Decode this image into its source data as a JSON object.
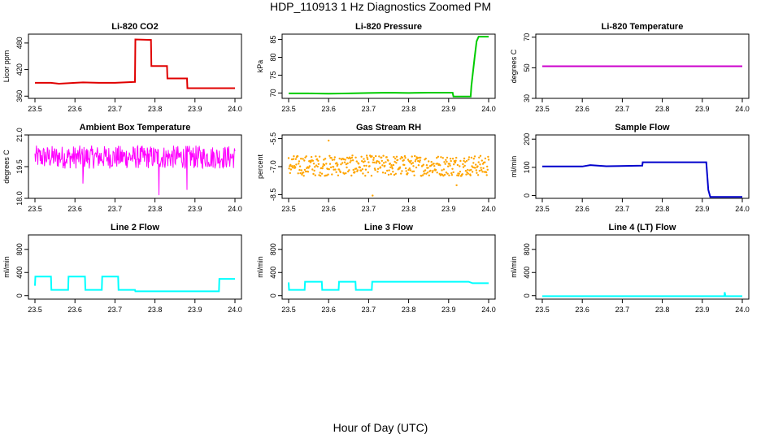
{
  "figure": {
    "title": "HDP_110913  1 Hz Diagnostics Zoomed PM",
    "xlabel": "Hour of Day (UTC)"
  },
  "chart_data": [
    {
      "type": "line",
      "title": "Li-820 CO2",
      "ylabel": "Licor ppm",
      "xlim": [
        23.5,
        24.0
      ],
      "ylim": [
        355,
        500
      ],
      "xticks": [
        "23.5",
        "23.6",
        "23.7",
        "23.8",
        "23.9",
        "24.0"
      ],
      "yticks": [
        {
          "v": 360,
          "label": "360"
        },
        {
          "v": 420,
          "label": "420"
        },
        {
          "v": 480,
          "label": "480"
        }
      ],
      "color": "#e00000",
      "series": [
        {
          "x": [
            23.5,
            23.54,
            23.56,
            23.6,
            23.62,
            23.66,
            23.7,
            23.75,
            23.751,
            23.79,
            23.791,
            23.83,
            23.831,
            23.88,
            23.881,
            23.92,
            23.96,
            24.0
          ],
          "y": [
            390,
            390,
            388,
            390,
            391,
            390,
            390,
            392,
            488,
            487,
            428,
            428,
            400,
            400,
            378,
            378,
            378,
            378
          ]
        }
      ]
    },
    {
      "type": "line",
      "title": "Li-820 Pressure",
      "ylabel": "kPa",
      "xlim": [
        23.5,
        24.0
      ],
      "ylim": [
        68.5,
        86.5
      ],
      "xticks": [
        "23.5",
        "23.6",
        "23.7",
        "23.8",
        "23.9",
        "24.0"
      ],
      "yticks": [
        {
          "v": 70,
          "label": "70"
        },
        {
          "v": 75,
          "label": "75"
        },
        {
          "v": 80,
          "label": "80"
        },
        {
          "v": 85,
          "label": "85"
        }
      ],
      "color": "#00cc00",
      "series": [
        {
          "x": [
            23.5,
            23.55,
            23.6,
            23.65,
            23.7,
            23.75,
            23.8,
            23.85,
            23.91,
            23.912,
            23.955,
            23.957,
            23.965,
            23.97,
            23.975,
            24.0
          ],
          "y": [
            69.9,
            69.9,
            69.8,
            69.9,
            70.0,
            70.1,
            70.0,
            70.1,
            70.1,
            69.0,
            69.0,
            72.0,
            80.0,
            84.5,
            85.8,
            85.8
          ]
        }
      ]
    },
    {
      "type": "line",
      "title": "Li-820 Temperature",
      "ylabel": "degrees C",
      "xlim": [
        23.5,
        24.0
      ],
      "ylim": [
        30,
        72
      ],
      "xticks": [
        "23.5",
        "23.6",
        "23.7",
        "23.8",
        "23.9",
        "24.0"
      ],
      "yticks": [
        {
          "v": 30,
          "label": "30"
        },
        {
          "v": 50,
          "label": "50"
        },
        {
          "v": 70,
          "label": "70"
        }
      ],
      "color": "#cc00cc",
      "series": [
        {
          "x": [
            23.5,
            24.0
          ],
          "y": [
            51,
            51
          ]
        }
      ]
    },
    {
      "type": "line",
      "title": "Ambient Box Temperature",
      "ylabel": "degrees C",
      "xlim": [
        23.5,
        24.0
      ],
      "ylim": [
        18.0,
        21.0
      ],
      "xticks": [
        "23.5",
        "23.6",
        "23.7",
        "23.8",
        "23.9",
        "24.0"
      ],
      "yticks": [
        {
          "v": 18.0,
          "label": "18.0"
        },
        {
          "v": 19.5,
          "label": "19.5"
        },
        {
          "v": 21.0,
          "label": "21.0"
        }
      ],
      "color": "#ff00ff",
      "noise": {
        "center": 19.95,
        "spread": 0.55,
        "spikes": [
          {
            "x": 23.81,
            "y": 18.15
          },
          {
            "x": 23.88,
            "y": 18.4
          },
          {
            "x": 23.62,
            "y": 18.7
          }
        ]
      }
    },
    {
      "type": "scatter",
      "title": "Gas Stream RH",
      "ylabel": "percent",
      "xlim": [
        23.5,
        24.0
      ],
      "ylim": [
        -8.7,
        -5.3
      ],
      "xticks": [
        "23.5",
        "23.6",
        "23.7",
        "23.8",
        "23.9",
        "24.0"
      ],
      "yticks": [
        {
          "v": -5.5,
          "label": "-5.5"
        },
        {
          "v": -7.0,
          "label": "-7.0"
        },
        {
          "v": -8.5,
          "label": "-8.5"
        }
      ],
      "color": "#ffa500",
      "noise": {
        "center": -6.95,
        "spread": 0.55,
        "spikes": [
          {
            "x": 23.71,
            "y": -8.55
          },
          {
            "x": 23.92,
            "y": -8.0
          },
          {
            "x": 23.6,
            "y": -5.6
          }
        ]
      }
    },
    {
      "type": "line",
      "title": "Sample Flow",
      "ylabel": "ml/min",
      "xlim": [
        23.5,
        24.0
      ],
      "ylim": [
        -10,
        215
      ],
      "xticks": [
        "23.5",
        "23.6",
        "23.7",
        "23.8",
        "23.9",
        "24.0"
      ],
      "yticks": [
        {
          "v": 0,
          "label": "0"
        },
        {
          "v": 100,
          "label": "100"
        },
        {
          "v": 200,
          "label": "200"
        }
      ],
      "color": "#0000cc",
      "series": [
        {
          "x": [
            23.5,
            23.6,
            23.62,
            23.66,
            23.75,
            23.751,
            23.91,
            23.915,
            23.92,
            24.0
          ],
          "y": [
            103,
            103,
            108,
            104,
            106,
            118,
            118,
            20,
            -5,
            -5
          ]
        }
      ]
    },
    {
      "type": "line",
      "title": "Line 2 Flow",
      "ylabel": "ml/min",
      "xlim": [
        23.5,
        24.0
      ],
      "ylim": [
        -60,
        1050
      ],
      "xticks": [
        "23.5",
        "23.6",
        "23.7",
        "23.8",
        "23.9",
        "24.0"
      ],
      "yticks": [
        {
          "v": 0,
          "label": "0"
        },
        {
          "v": 400,
          "label": "400"
        },
        {
          "v": 800,
          "label": "800"
        }
      ],
      "color": "#00ffff",
      "series": [
        {
          "x": [
            23.5,
            23.501,
            23.54,
            23.541,
            23.583,
            23.584,
            23.625,
            23.626,
            23.667,
            23.668,
            23.708,
            23.709,
            23.75,
            23.751,
            23.96,
            23.961,
            24.0
          ],
          "y": [
            170,
            330,
            330,
            100,
            100,
            330,
            330,
            100,
            100,
            330,
            330,
            100,
            100,
            75,
            75,
            290,
            290
          ]
        }
      ]
    },
    {
      "type": "line",
      "title": "Line 3 Flow",
      "ylabel": "ml/min",
      "xlim": [
        23.5,
        24.0
      ],
      "ylim": [
        -60,
        1050
      ],
      "xticks": [
        "23.5",
        "23.6",
        "23.7",
        "23.8",
        "23.9",
        "24.0"
      ],
      "yticks": [
        {
          "v": 0,
          "label": "0"
        },
        {
          "v": 400,
          "label": "400"
        },
        {
          "v": 800,
          "label": "800"
        }
      ],
      "color": "#00ffff",
      "series": [
        {
          "x": [
            23.5,
            23.501,
            23.54,
            23.541,
            23.583,
            23.584,
            23.625,
            23.626,
            23.667,
            23.668,
            23.708,
            23.709,
            23.95,
            23.96,
            24.0
          ],
          "y": [
            230,
            100,
            100,
            240,
            240,
            100,
            100,
            240,
            240,
            100,
            100,
            240,
            240,
            215,
            215
          ]
        }
      ]
    },
    {
      "type": "line",
      "title": "Line 4 (LT) Flow",
      "ylabel": "ml/min",
      "xlim": [
        23.5,
        24.0
      ],
      "ylim": [
        -60,
        1050
      ],
      "xticks": [
        "23.5",
        "23.6",
        "23.7",
        "23.8",
        "23.9",
        "24.0"
      ],
      "yticks": [
        {
          "v": 0,
          "label": "0"
        },
        {
          "v": 400,
          "label": "400"
        },
        {
          "v": 800,
          "label": "800"
        }
      ],
      "color": "#00ffff",
      "series": [
        {
          "x": [
            23.5,
            23.955,
            23.956,
            23.958,
            23.96,
            24.0
          ],
          "y": [
            -10,
            -10,
            60,
            -10,
            -10,
            -10
          ]
        }
      ]
    }
  ]
}
